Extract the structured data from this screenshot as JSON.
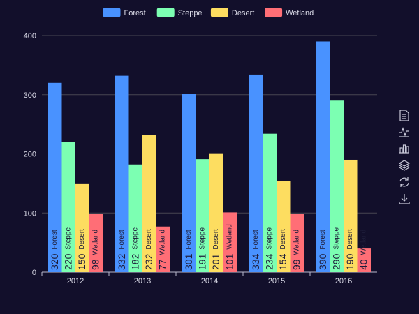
{
  "chart_data": {
    "type": "bar",
    "categories": [
      "2012",
      "2013",
      "2014",
      "2015",
      "2016"
    ],
    "series": [
      {
        "name": "Forest",
        "color": "#4992ff",
        "values": [
          320,
          332,
          301,
          334,
          390
        ]
      },
      {
        "name": "Steppe",
        "color": "#7cffb2",
        "values": [
          220,
          182,
          191,
          234,
          290
        ]
      },
      {
        "name": "Desert",
        "color": "#fddd60",
        "values": [
          150,
          232,
          201,
          154,
          190
        ]
      },
      {
        "name": "Wetland",
        "color": "#ff6e76",
        "values": [
          98,
          77,
          101,
          99,
          40
        ]
      }
    ],
    "ylim": [
      0,
      400
    ],
    "yticks": [
      0,
      100,
      200,
      300,
      400
    ],
    "grid": true,
    "legend_position": "top-center",
    "data_labels": "inside-bottom-rotated, value + series name"
  },
  "toolbox": {
    "icons": [
      "data-view-icon",
      "line-chart-icon",
      "bar-chart-icon",
      "stack-icon",
      "restore-icon",
      "download-icon"
    ]
  }
}
